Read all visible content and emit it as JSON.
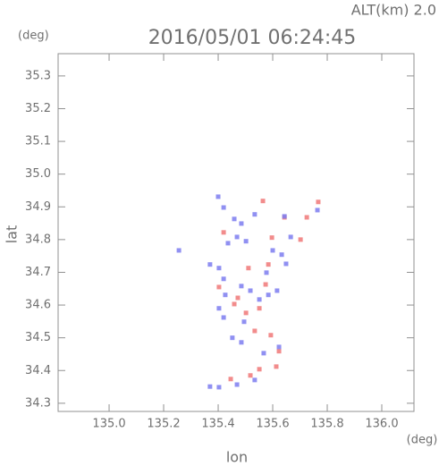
{
  "chart_data": {
    "type": "scatter",
    "title": "2016/05/01 06:24:45",
    "annotation": "ALT(km)  2.0",
    "y_unit": "(deg)",
    "x_unit": "(deg)",
    "xlabel": "lon",
    "ylabel": "lat",
    "xlim": [
      134.813,
      136.118
    ],
    "ylim": [
      34.275,
      35.368
    ],
    "xticks": [
      {
        "value": 135,
        "label": "135.0"
      },
      135.2,
      135.4,
      135.6,
      135.8,
      {
        "value": 136,
        "label": "136.0"
      }
    ],
    "yticks": [
      34.3,
      34.4,
      34.5,
      34.6,
      34.7,
      34.8,
      34.9,
      {
        "value": 35,
        "label": "35.0"
      },
      35.1,
      35.2,
      35.3
    ],
    "series": [
      {
        "color": "#f07878",
        "x": [
          135.767,
          135.725,
          135.702,
          135.564,
          135.643,
          135.597,
          135.511,
          135.574,
          135.459,
          135.502,
          135.551,
          135.534,
          135.593,
          135.623,
          135.613,
          135.551,
          135.518,
          135.446,
          135.403,
          135.584,
          135.472,
          135.42
        ],
        "values": [
          34.915,
          34.868,
          34.8,
          34.918,
          34.868,
          34.806,
          34.713,
          34.663,
          34.603,
          34.576,
          34.59,
          34.521,
          34.508,
          34.459,
          34.412,
          34.404,
          34.385,
          34.374,
          34.655,
          34.724,
          34.622,
          34.822
        ]
      },
      {
        "color": "#7c7cf0",
        "x": [
          135.4,
          135.42,
          135.459,
          135.485,
          135.469,
          135.436,
          135.403,
          135.42,
          135.426,
          135.403,
          135.42,
          135.485,
          135.518,
          135.551,
          135.584,
          135.577,
          135.6,
          135.633,
          135.649,
          135.643,
          135.666,
          135.764,
          135.534,
          135.502,
          135.485,
          135.452,
          135.623,
          135.567,
          135.534,
          135.469,
          135.403,
          135.37,
          135.495,
          135.256,
          135.37,
          135.616
        ],
        "values": [
          34.931,
          34.898,
          34.863,
          34.849,
          34.808,
          34.789,
          34.713,
          34.68,
          34.631,
          34.59,
          34.562,
          34.658,
          34.644,
          34.617,
          34.631,
          34.699,
          34.767,
          34.754,
          34.726,
          34.871,
          34.808,
          34.89,
          34.877,
          34.795,
          34.486,
          34.5,
          34.472,
          34.453,
          34.371,
          34.357,
          34.349,
          34.351,
          34.549,
          34.767,
          34.724,
          34.644
        ]
      }
    ]
  }
}
